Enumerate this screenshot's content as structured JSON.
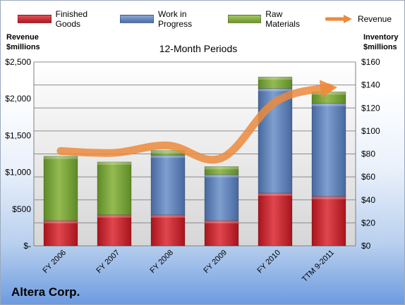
{
  "chart_data": {
    "type": "bar",
    "title": "",
    "subtitle": "12-Month Periods",
    "company": "Altera Corp.",
    "categories": [
      "FY 2006",
      "FY 2007",
      "FY 2008",
      "FY 2009",
      "FY 2010",
      "TTM 9-2011"
    ],
    "left_axis": {
      "label": "Revenue $millions",
      "label_lines": [
        "Revenue",
        "$millions"
      ],
      "ylim": [
        0,
        2500
      ],
      "ticks": [
        0,
        500,
        1000,
        1500,
        2000,
        2500
      ],
      "tick_labels": [
        "$-",
        "$500",
        "$1,000",
        "$1,500",
        "$2,000",
        "$2,500"
      ]
    },
    "right_axis": {
      "label": "Inventory $millions",
      "label_lines": [
        "Inventory",
        "$millions"
      ],
      "ylim": [
        0,
        160
      ],
      "ticks": [
        0,
        20,
        40,
        60,
        80,
        100,
        120,
        140,
        160
      ],
      "tick_labels": [
        "$0",
        "$20",
        "$40",
        "$60",
        "$80",
        "$100",
        "$120",
        "$140",
        "$160"
      ]
    },
    "series": [
      {
        "name": "Finished Goods",
        "type": "bar",
        "axis": "right",
        "color": "#c0202a",
        "values": [
          22,
          27,
          27,
          22,
          46,
          43
        ]
      },
      {
        "name": "Work in Progress",
        "type": "bar",
        "axis": "right",
        "color": "#5b7fb5",
        "values": [
          0,
          0,
          52,
          40,
          91,
          81
        ]
      },
      {
        "name": "Raw Materials",
        "type": "bar",
        "axis": "right",
        "color": "#7ea63a",
        "values": [
          56,
          46,
          4,
          7,
          10,
          10
        ]
      },
      {
        "name": "Revenue",
        "type": "line",
        "axis": "left",
        "color": "#ec8a3c",
        "values": [
          1290,
          1265,
          1365,
          1195,
          1955,
          2155
        ]
      }
    ],
    "grid": true,
    "legend_position": "top"
  }
}
